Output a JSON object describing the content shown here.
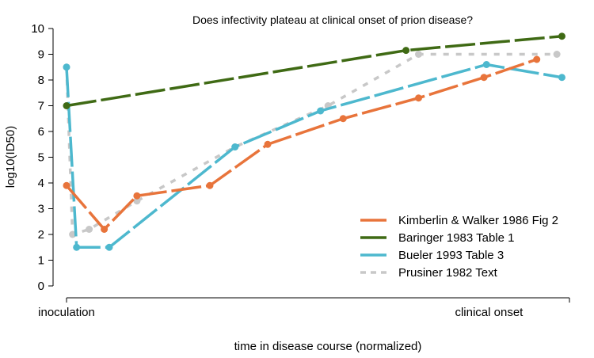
{
  "chart_data": {
    "type": "line",
    "title": "Does infectivity plateau at clinical onset of prion disease?",
    "xlabel": "time in disease course (normalized)",
    "ylabel": "log10(ID50)",
    "xlim": [
      0,
      1
    ],
    "ylim": [
      0,
      10
    ],
    "yticks": [
      0,
      1,
      2,
      3,
      4,
      5,
      6,
      7,
      8,
      9,
      10
    ],
    "x_tick_labels": [
      {
        "x": 0,
        "label": "inoculation"
      },
      {
        "x": 0.84,
        "label": "clinical onset"
      }
    ],
    "grid": false,
    "legend_position": "bottom-right",
    "series": [
      {
        "name": "Kimberlin & Walker 1986 Fig 2",
        "color": "#E8743B",
        "style": "dashed",
        "x": [
          0,
          0.075,
          0.14,
          0.285,
          0.4,
          0.55,
          0.7,
          0.83,
          0.935
        ],
        "y": [
          3.9,
          2.2,
          3.5,
          3.9,
          5.5,
          6.5,
          7.3,
          8.1,
          8.8
        ]
      },
      {
        "name": "Baringer 1983 Table 1",
        "color": "#3F6A14",
        "style": "dashed",
        "x": [
          0,
          0.675,
          0.985
        ],
        "y": [
          7.0,
          9.15,
          9.7
        ]
      },
      {
        "name": "Bueler 1993 Table 3",
        "color": "#4DB8CE",
        "style": "dashed",
        "x": [
          0,
          0.02,
          0.085,
          0.335,
          0.505,
          0.835,
          0.985
        ],
        "y": [
          8.5,
          1.5,
          1.5,
          5.4,
          6.8,
          8.6,
          8.1
        ]
      },
      {
        "name": "Prusiner 1982 Text",
        "color": "#C8C8C8",
        "style": "dotted",
        "x": [
          0,
          0.012,
          0.045,
          0.14,
          0.335,
          0.52,
          0.7,
          0.975
        ],
        "y": [
          8.5,
          2.0,
          2.2,
          3.3,
          5.4,
          7.0,
          9.0,
          9.0
        ]
      }
    ]
  }
}
